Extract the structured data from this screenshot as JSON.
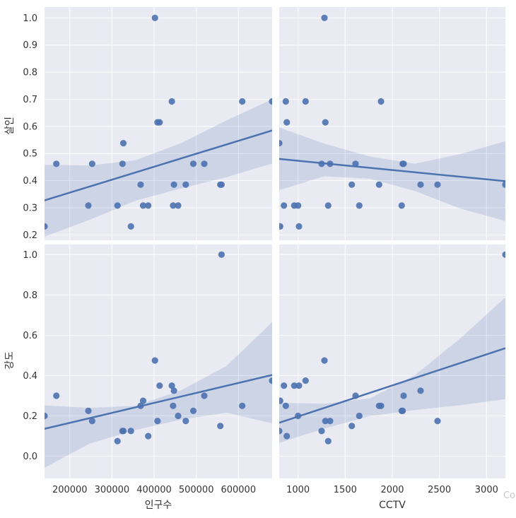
{
  "chart_data": {
    "type": "scatter",
    "layout": "pairgrid-2x2",
    "grid": true,
    "columns": [
      {
        "xlabel": "인구수",
        "xlim": [
          140000,
          680000
        ],
        "xticks": [
          200000,
          300000,
          400000,
          500000,
          600000
        ]
      },
      {
        "xlabel": "CCTV",
        "xlim": [
          800,
          3200
        ],
        "xticks": [
          1000,
          1500,
          2000,
          2500,
          3000
        ]
      }
    ],
    "rows": [
      {
        "ylabel": "살인",
        "ylim": [
          0.18,
          1.04
        ],
        "yticks": [
          0.2,
          0.3,
          0.4,
          0.5,
          0.6,
          0.7,
          0.8,
          0.9,
          1.0
        ],
        "tick_decimals": 1
      },
      {
        "ylabel": "강도",
        "ylim": [
          -0.11,
          1.05
        ],
        "yticks": [
          0.0,
          0.2,
          0.4,
          0.6,
          0.8,
          1.0
        ],
        "tick_decimals": 1
      }
    ],
    "panels": [
      {
        "row": 0,
        "col": 0,
        "x": [
          140000,
          168000,
          244000,
          253000,
          313000,
          325000,
          327000,
          345000,
          368000,
          374000,
          386000,
          402000,
          408000,
          413000,
          442000,
          445000,
          447000,
          457000,
          475000,
          493000,
          519000,
          557000,
          560000,
          609000,
          680000
        ],
        "y": [
          0.231,
          0.462,
          0.308,
          0.462,
          0.308,
          0.462,
          0.538,
          0.231,
          0.385,
          0.308,
          0.308,
          1.0,
          0.615,
          0.615,
          0.692,
          0.308,
          0.385,
          0.308,
          0.385,
          0.462,
          0.462,
          0.385,
          0.385,
          0.692,
          0.692
        ],
        "regression": {
          "x": [
            140000,
            680000
          ],
          "y": [
            0.327,
            0.585
          ]
        },
        "ci_upper": [
          0.458,
          0.456,
          0.475,
          0.538,
          0.622,
          0.7
        ],
        "ci_lower": [
          0.193,
          0.256,
          0.326,
          0.371,
          0.413,
          0.463
        ]
      },
      {
        "row": 0,
        "col": 1,
        "x": [
          800,
          810,
          850,
          870,
          880,
          960,
          1000,
          1010,
          1080,
          1250,
          1280,
          1290,
          1320,
          1340,
          1570,
          1610,
          1650,
          1860,
          1880,
          2100,
          2110,
          2120,
          2300,
          2480,
          3200
        ],
        "y": [
          0.538,
          0.231,
          0.308,
          0.692,
          0.615,
          0.308,
          0.308,
          0.231,
          0.692,
          0.462,
          1.0,
          0.615,
          0.308,
          0.462,
          0.385,
          0.462,
          0.308,
          0.385,
          0.692,
          0.308,
          0.462,
          0.462,
          0.385,
          0.385,
          0.385
        ],
        "regression": {
          "x": [
            800,
            3200
          ],
          "y": [
            0.48,
            0.398
          ]
        },
        "ci_upper": [
          0.596,
          0.536,
          0.489,
          0.462,
          0.498,
          0.545
        ],
        "ci_lower": [
          0.365,
          0.416,
          0.407,
          0.362,
          0.297,
          0.251
        ]
      },
      {
        "row": 1,
        "col": 0,
        "x": [
          140000,
          168000,
          244000,
          253000,
          313000,
          325000,
          327000,
          345000,
          368000,
          374000,
          386000,
          402000,
          408000,
          413000,
          442000,
          445000,
          447000,
          457000,
          475000,
          493000,
          519000,
          557000,
          560000,
          609000,
          680000
        ],
        "y": [
          0.2,
          0.3,
          0.225,
          0.175,
          0.075,
          0.125,
          0.125,
          0.125,
          0.25,
          0.275,
          0.1,
          0.475,
          0.175,
          0.35,
          0.35,
          0.25,
          0.325,
          0.2,
          0.175,
          0.225,
          0.3,
          0.15,
          1.0,
          0.25,
          0.375
        ],
        "regression": {
          "x": [
            140000,
            680000
          ],
          "y": [
            0.136,
            0.403
          ]
        },
        "ci_upper": [
          0.252,
          0.24,
          0.25,
          0.327,
          0.448,
          0.665
        ],
        "ci_lower": [
          -0.057,
          0.064,
          0.13,
          0.182,
          0.216,
          0.163
        ]
      },
      {
        "row": 1,
        "col": 1,
        "x": [
          800,
          810,
          850,
          870,
          880,
          960,
          1000,
          1010,
          1080,
          1250,
          1280,
          1290,
          1320,
          1340,
          1570,
          1610,
          1650,
          1860,
          1880,
          2100,
          2110,
          2120,
          2300,
          2480,
          3200
        ],
        "y": [
          0.125,
          0.275,
          0.35,
          0.25,
          0.1,
          0.35,
          0.2,
          0.35,
          0.375,
          0.125,
          0.475,
          0.175,
          0.075,
          0.175,
          0.15,
          0.3,
          0.2,
          0.25,
          0.25,
          0.225,
          0.225,
          0.3,
          0.325,
          0.175,
          1.0
        ],
        "regression": {
          "x": [
            800,
            3200
          ],
          "y": [
            0.166,
            0.536
          ]
        },
        "ci_upper": [
          0.265,
          0.26,
          0.287,
          0.402,
          0.584,
          0.788
        ],
        "ci_lower": [
          0.066,
          0.138,
          0.199,
          0.229,
          0.253,
          0.283
        ]
      }
    ]
  },
  "clipped_text": "Co"
}
